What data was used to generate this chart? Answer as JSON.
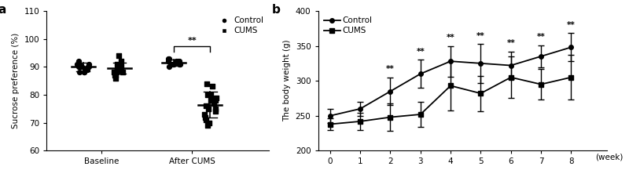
{
  "panel_a": {
    "title_label": "a",
    "ylabel": "Sucrose preference (%)",
    "xtick_labels": [
      "Baseline",
      "After CUMS"
    ],
    "ylim": [
      60,
      110
    ],
    "yticks": [
      60,
      70,
      80,
      90,
      100,
      110
    ],
    "control_baseline": [
      90,
      91,
      89,
      88,
      90,
      92,
      91,
      90,
      88,
      89,
      91,
      90,
      89,
      90,
      91,
      88
    ],
    "cums_baseline": [
      91,
      89,
      90,
      88,
      92,
      87,
      89,
      90,
      94,
      88,
      87,
      90,
      89,
      88,
      90,
      86
    ],
    "control_after": [
      93,
      92,
      91,
      92,
      91,
      90,
      92,
      91,
      93,
      91,
      92,
      91
    ],
    "cums_after": [
      84,
      83,
      80,
      78,
      80,
      76,
      79,
      77,
      78,
      75,
      78,
      74,
      72,
      71,
      73,
      75,
      70,
      69
    ],
    "control_baseline_mean": 90.0,
    "control_baseline_sd": 1.5,
    "cums_baseline_mean": 89.5,
    "cums_baseline_sd": 2.0,
    "control_after_mean": 91.5,
    "control_after_sd": 1.0,
    "cums_after_mean": 76.5,
    "cums_after_sd": 4.5,
    "sig_label": "**"
  },
  "panel_b": {
    "title_label": "b",
    "ylabel": "The body weight (g)",
    "xlabel": "(week)",
    "xticks": [
      0,
      1,
      2,
      3,
      4,
      5,
      6,
      7,
      8
    ],
    "ylim": [
      200,
      400
    ],
    "yticks": [
      200,
      250,
      300,
      350,
      400
    ],
    "control_mean": [
      250,
      260,
      285,
      310,
      328,
      325,
      322,
      335,
      348
    ],
    "control_sd": [
      10,
      10,
      20,
      20,
      22,
      28,
      20,
      16,
      20
    ],
    "cums_mean": [
      238,
      242,
      248,
      252,
      293,
      282,
      305,
      295,
      305
    ],
    "cums_sd": [
      8,
      12,
      20,
      18,
      35,
      25,
      30,
      22,
      32
    ],
    "sig_weeks": [
      2,
      3,
      4,
      5,
      6,
      7,
      8
    ],
    "sig_label": "**"
  }
}
